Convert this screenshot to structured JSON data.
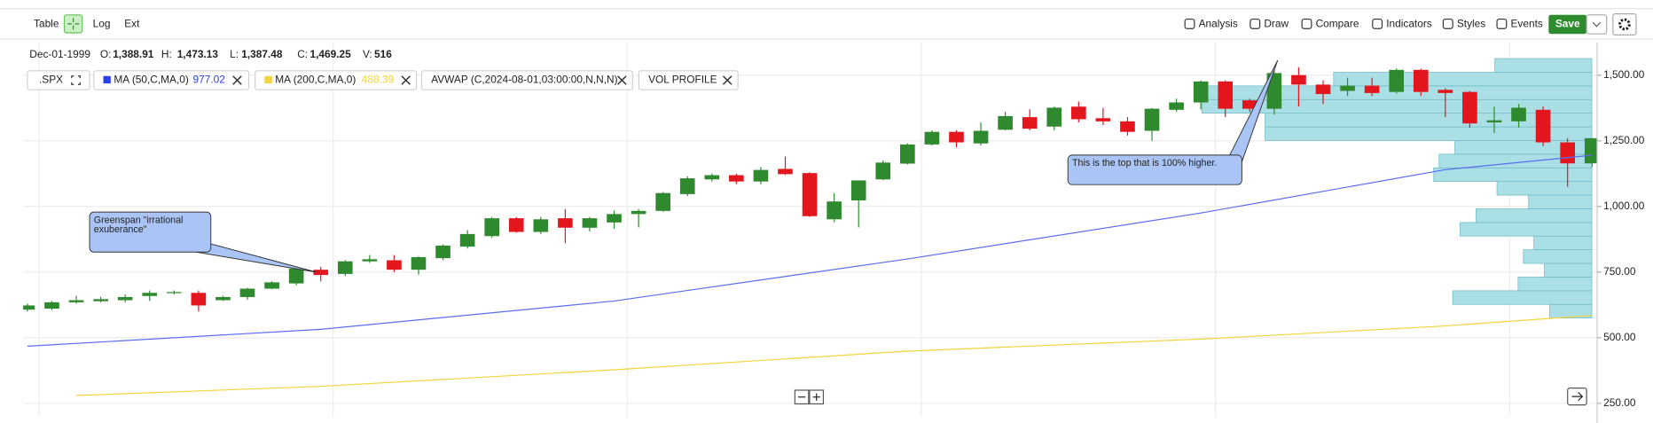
{
  "toolbar": {
    "left": [
      "Table",
      "Log",
      "Ext"
    ],
    "right": [
      "Analysis",
      "Draw",
      "Compare",
      "Indicators",
      "Styles",
      "Events"
    ],
    "save": "Save"
  },
  "readout": {
    "date": "Dec-01-1999",
    "items": [
      {
        "label": "O:",
        "value": "1,388.91"
      },
      {
        "label": "H:",
        "value": "1,473.13"
      },
      {
        "label": "L:",
        "value": "1,387.48"
      },
      {
        "label": "C:",
        "value": "1,469.25"
      },
      {
        "label": "V:",
        "value": "516"
      }
    ]
  },
  "studies": [
    {
      "label": ".SPX"
    },
    {
      "label": "MA (50,C,MA,0)",
      "value": "977.02",
      "color": "#2b3ff0"
    },
    {
      "label": "MA (200,C,MA,0)",
      "value": "488.39",
      "color": "#f2d43c"
    },
    {
      "label": "AVWAP (C,2024-08-01,03:00:00,N,N,N)"
    },
    {
      "label": "VOL PROFILE"
    }
  ],
  "chart_data": {
    "type": "candlestick",
    "up_color": "#2f8a2f",
    "down_color": "#e3161e",
    "open": [
      607,
      611,
      635,
      639,
      643,
      659,
      670,
      671,
      643,
      655,
      687,
      707,
      759,
      743,
      791,
      795,
      759,
      803,
      847,
      887,
      955,
      903,
      955,
      919,
      939,
      971,
      983,
      1047,
      1103,
      1119,
      1095,
      1143,
      1127,
      951,
      1023,
      1103,
      1163,
      1236,
      1284,
      1240,
      1292,
      1340,
      1304,
      1380,
      1336,
      1324,
      1288,
      1368,
      1396,
      1476,
      1404,
      1372,
      1500,
      1464,
      1440,
      1460,
      1436,
      1520,
      1444,
      1436,
      1320,
      1324,
      1368,
      1244,
      1164
    ],
    "high": [
      630,
      640,
      660,
      655,
      665,
      680,
      680,
      680,
      660,
      690,
      715,
      770,
      770,
      795,
      815,
      815,
      810,
      855,
      910,
      960,
      960,
      960,
      990,
      960,
      985,
      990,
      1055,
      1115,
      1125,
      1125,
      1150,
      1190,
      1130,
      1050,
      1100,
      1175,
      1240,
      1290,
      1290,
      1320,
      1360,
      1370,
      1380,
      1400,
      1375,
      1340,
      1375,
      1410,
      1480,
      1480,
      1410,
      1520,
      1530,
      1480,
      1490,
      1490,
      1525,
      1525,
      1450,
      1440,
      1380,
      1390,
      1380,
      1260,
      1260
    ],
    "low": [
      600,
      605,
      630,
      635,
      635,
      640,
      665,
      600,
      640,
      645,
      685,
      700,
      715,
      735,
      785,
      750,
      740,
      795,
      840,
      880,
      900,
      895,
      860,
      905,
      915,
      920,
      980,
      1040,
      1095,
      1085,
      1085,
      1120,
      960,
      940,
      920,
      1100,
      1160,
      1232,
      1225,
      1232,
      1290,
      1290,
      1290,
      1320,
      1310,
      1270,
      1250,
      1360,
      1370,
      1340,
      1360,
      1350,
      1380,
      1390,
      1420,
      1420,
      1430,
      1420,
      1340,
      1300,
      1280,
      1300,
      1230,
      1075,
      1150
    ],
    "close": [
      623,
      635,
      643,
      647,
      655,
      671,
      674,
      623,
      655,
      687,
      711,
      763,
      739,
      791,
      799,
      759,
      807,
      851,
      895,
      955,
      903,
      951,
      919,
      955,
      971,
      983,
      1051,
      1107,
      1119,
      1095,
      1139,
      1123,
      963,
      1019,
      1099,
      1167,
      1236,
      1284,
      1244,
      1288,
      1344,
      1296,
      1376,
      1332,
      1324,
      1284,
      1372,
      1396,
      1476,
      1372,
      1372,
      1508,
      1464,
      1428,
      1460,
      1432,
      1520,
      1436,
      1432,
      1316,
      1328,
      1376,
      1244,
      1164,
      1260
    ],
    "series": [
      {
        "name": "MA (50,C,MA,0)",
        "color": "#5a6cf0",
        "x": [
          0,
          12,
          24,
          36,
          48,
          58,
          64
        ],
        "values": [
          468,
          532,
          640,
          800,
          975,
          1140,
          1195
        ]
      },
      {
        "name": "MA (200,C,MA,0)",
        "color": "#f2d43c",
        "x": [
          2,
          12,
          24,
          36,
          48,
          58,
          64
        ],
        "values": [
          280,
          315,
          378,
          449,
          495,
          545,
          585
        ]
      }
    ],
    "volume_profile": {
      "color": "#aadfe6",
      "edge": "#6fb9c6",
      "bins": [
        575,
        627,
        679,
        731,
        783,
        835,
        887,
        939,
        991,
        1043,
        1095,
        1147,
        1199,
        1251,
        1303,
        1355,
        1407,
        1459,
        1511,
        1563
      ],
      "values": [
        40,
        132,
        70,
        45,
        65,
        55,
        125,
        110,
        60,
        90,
        150,
        145,
        130,
        310,
        310,
        370,
        370,
        245,
        92
      ]
    },
    "ylim": [
      200,
      1625
    ],
    "yticks": [
      {
        "value": 1500,
        "label": "1,500.00"
      },
      {
        "value": 1250,
        "label": "1,250.00"
      },
      {
        "value": 1000,
        "label": "1,000.00"
      },
      {
        "value": 750,
        "label": "750.00"
      },
      {
        "value": 500,
        "label": "500.00"
      },
      {
        "value": 250,
        "label": "250.00"
      }
    ],
    "grid": true,
    "annotations": [
      {
        "lines": [
          "Greenspan \"irrational",
          "exuberance\""
        ]
      },
      {
        "lines": [
          "This is the top that is 100% higher."
        ]
      }
    ]
  }
}
